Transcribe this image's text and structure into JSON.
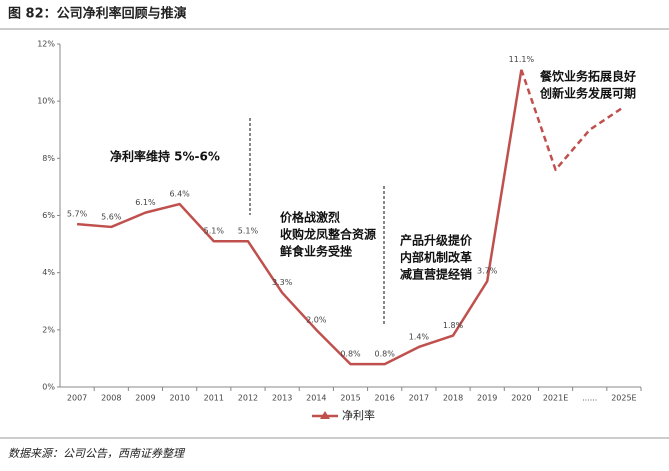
{
  "title": "图 82：公司净利率回顾与推演",
  "source": "数据来源：公司公告，西南证券整理",
  "chart_data": {
    "type": "line",
    "categories": [
      "2007",
      "2008",
      "2009",
      "2010",
      "2011",
      "2012",
      "2013",
      "2014",
      "2015",
      "2016",
      "2017",
      "2018",
      "2019",
      "2020",
      "2021E",
      "......",
      "2025E"
    ],
    "series": [
      {
        "name": "净利率",
        "color": "#c0504d",
        "style": "solid",
        "values": [
          5.7,
          5.6,
          6.1,
          6.4,
          5.1,
          5.1,
          3.3,
          2.0,
          0.8,
          0.8,
          1.4,
          1.8,
          3.7,
          11.1,
          null,
          null,
          null
        ],
        "value_labels": [
          "5.7%",
          "5.6%",
          "6.1%",
          "6.4%",
          "5.1%",
          "5.1%",
          "3.3%",
          "2.0%",
          "0.8%",
          "0.8%",
          "1.4%",
          "1.8%",
          "3.7%",
          "11.1%",
          null,
          null,
          null
        ]
      },
      {
        "color": "#c0504d",
        "style": "dashed",
        "values": [
          null,
          null,
          null,
          null,
          null,
          null,
          null,
          null,
          null,
          null,
          null,
          null,
          null,
          11.1,
          7.6,
          9.0,
          9.8
        ]
      }
    ],
    "ylim": [
      0,
      12
    ],
    "yticks": [
      {
        "value": 0,
        "label": "0%"
      },
      {
        "value": 2,
        "label": "2%"
      },
      {
        "value": 4,
        "label": "4%"
      },
      {
        "value": 6,
        "label": "6%"
      },
      {
        "value": 8,
        "label": "8%"
      },
      {
        "value": 10,
        "label": "10%"
      },
      {
        "value": 12,
        "label": "12%"
      }
    ],
    "annotations": [
      [
        "净利率维持 5%-6%"
      ],
      [
        "价格战激烈",
        "收购龙凤整合资源",
        "鲜食业务受挫"
      ],
      [
        "产品升级提价",
        "内部机制改革",
        "减直营提经销"
      ],
      [
        "餐饮业务拓展良好",
        "创新业务发展可期"
      ]
    ]
  }
}
